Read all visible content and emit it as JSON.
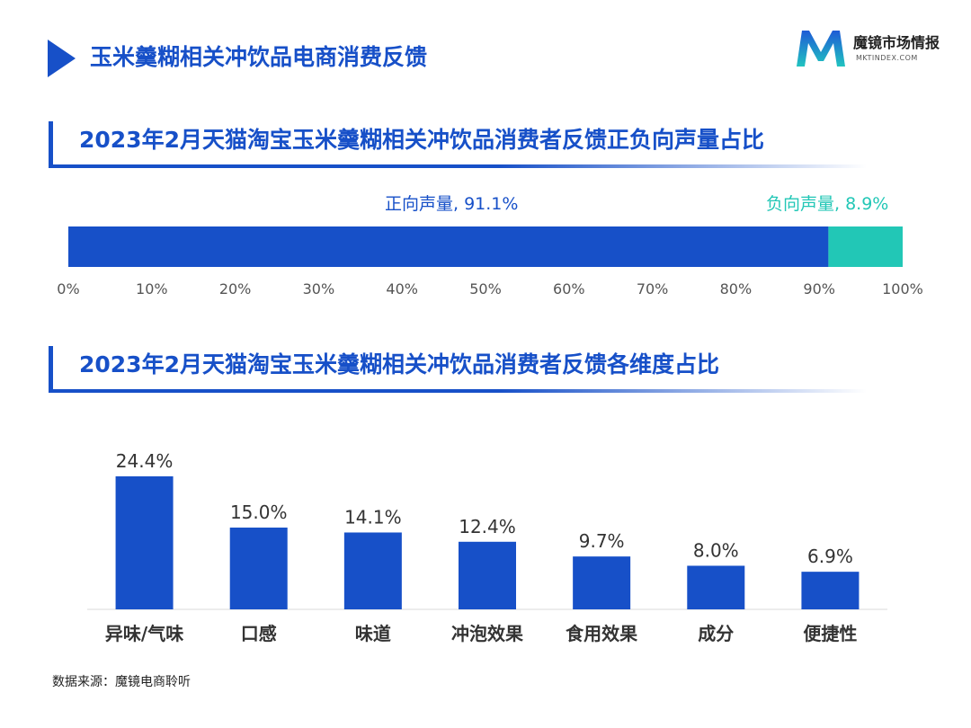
{
  "header": {
    "title": "玉米羹糊相关冲饮品电商消费反馈"
  },
  "logo": {
    "name": "魔镜市场情报",
    "sub": "MKTINDEX.COM",
    "mark": "M"
  },
  "section1": {
    "title": "2023年2月天猫淘宝玉米羹糊相关冲饮品消费者反馈正负向声量占比"
  },
  "section2": {
    "title": "2023年2月天猫淘宝玉米羹糊相关冲饮品消费者反馈各维度占比"
  },
  "source": "数据来源：魔镜电商聆听",
  "colors": {
    "primary": "#1750C8",
    "negative": "#22C7B6"
  },
  "chart_data": [
    {
      "type": "bar",
      "orientation": "horizontal-stacked",
      "series": [
        {
          "name": "正向声量",
          "value": 91.1,
          "label": "正向声量, 91.1%"
        },
        {
          "name": "负向声量",
          "value": 8.9,
          "label": "负向声量, 8.9%"
        }
      ],
      "xlim": [
        0,
        100
      ],
      "xticks": [
        "0%",
        "10%",
        "20%",
        "30%",
        "40%",
        "50%",
        "60%",
        "70%",
        "80%",
        "90%",
        "100%"
      ],
      "grid": false
    },
    {
      "type": "bar",
      "categories": [
        "异味/气味",
        "口感",
        "味道",
        "冲泡效果",
        "食用效果",
        "成分",
        "便捷性"
      ],
      "values": [
        24.4,
        15.0,
        14.1,
        12.4,
        9.7,
        8.0,
        6.9
      ],
      "data_labels": [
        "24.4%",
        "15.0%",
        "14.1%",
        "12.4%",
        "9.7%",
        "8.0%",
        "6.9%"
      ],
      "grid": false
    }
  ]
}
